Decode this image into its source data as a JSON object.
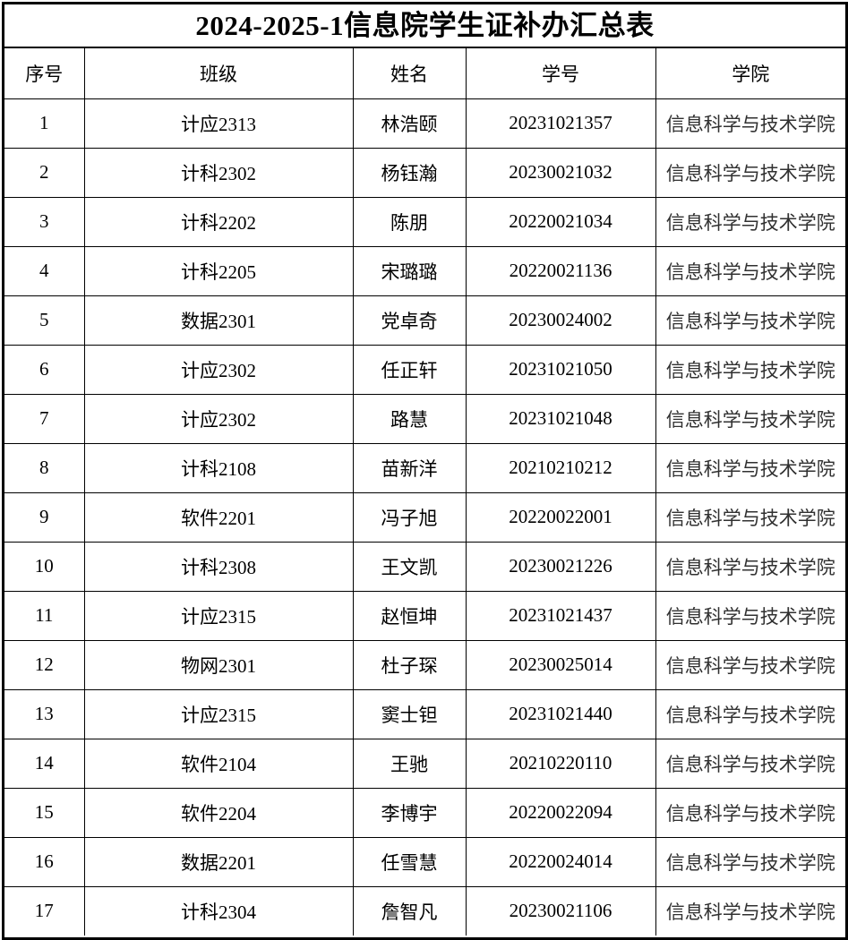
{
  "title": "2024-2025-1信息院学生证补办汇总表",
  "table": {
    "headers": [
      "序号",
      "班级",
      "姓名",
      "学号",
      "学院"
    ],
    "rows": [
      [
        "1",
        "计应2313",
        "林浩颐",
        "20231021357",
        "信息科学与技术学院"
      ],
      [
        "2",
        "计科2302",
        "杨钰瀚",
        "20230021032",
        "信息科学与技术学院"
      ],
      [
        "3",
        "计科2202",
        "陈朋",
        "20220021034",
        "信息科学与技术学院"
      ],
      [
        "4",
        "计科2205",
        "宋璐璐",
        "20220021136",
        "信息科学与技术学院"
      ],
      [
        "5",
        "数据2301",
        "党卓奇",
        "20230024002",
        "信息科学与技术学院"
      ],
      [
        "6",
        "计应2302",
        "任正轩",
        "20231021050",
        "信息科学与技术学院"
      ],
      [
        "7",
        "计应2302",
        "路慧",
        "20231021048",
        "信息科学与技术学院"
      ],
      [
        "8",
        "计科2108",
        "苗新洋",
        "20210210212",
        "信息科学与技术学院"
      ],
      [
        "9",
        "软件2201",
        "冯子旭",
        "20220022001",
        "信息科学与技术学院"
      ],
      [
        "10",
        "计科2308",
        "王文凯",
        "20230021226",
        "信息科学与技术学院"
      ],
      [
        "11",
        "计应2315",
        "赵恒坤",
        "20231021437",
        "信息科学与技术学院"
      ],
      [
        "12",
        "物网2301",
        "杜子琛",
        "20230025014",
        "信息科学与技术学院"
      ],
      [
        "13",
        "计应2315",
        "窦士钽",
        "20231021440",
        "信息科学与技术学院"
      ],
      [
        "14",
        "软件2104",
        "王驰",
        "20210220110",
        "信息科学与技术学院"
      ],
      [
        "15",
        "软件2204",
        "李博宇",
        "20220022094",
        "信息科学与技术学院"
      ],
      [
        "16",
        "数据2201",
        "任雪慧",
        "20220024014",
        "信息科学与技术学院"
      ],
      [
        "17",
        "计科2304",
        "詹智凡",
        "20230021106",
        "信息科学与技术学院"
      ]
    ]
  },
  "colors": {
    "border": "#000000",
    "background": "#ffffff",
    "text": "#000000",
    "college_text": "#303030"
  }
}
